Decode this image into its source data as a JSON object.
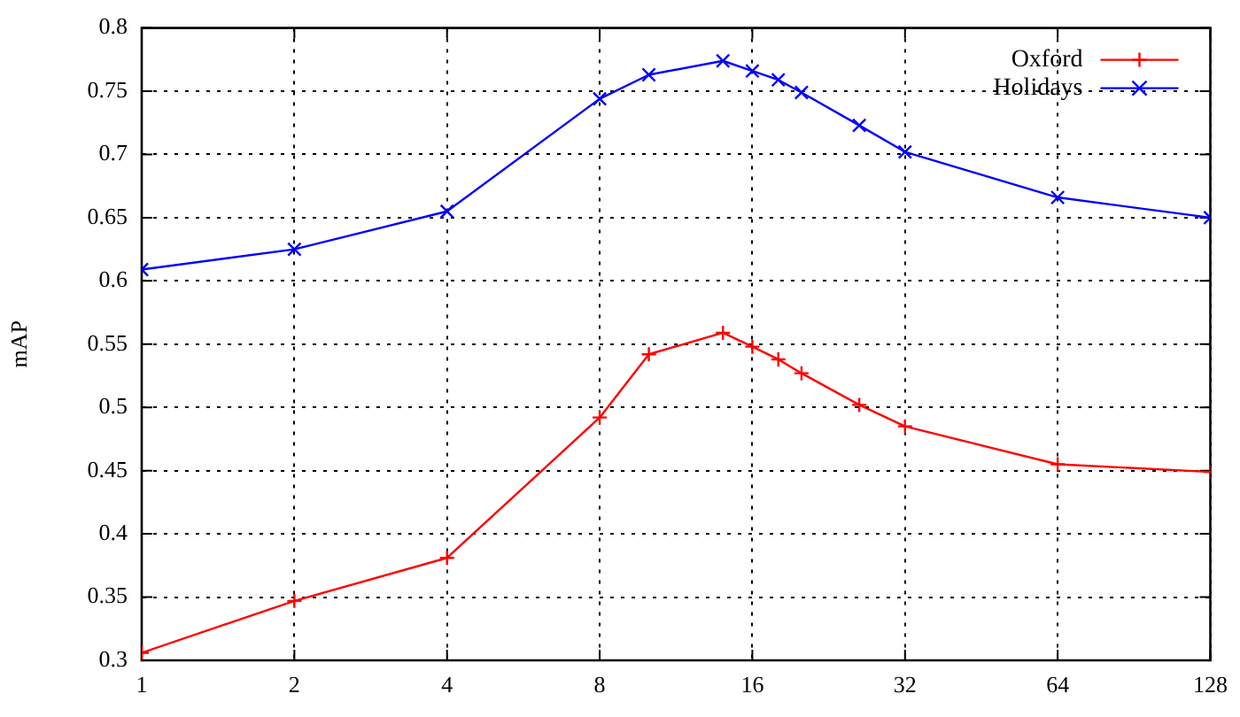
{
  "chart_data": {
    "type": "line",
    "ylabel": "mAP",
    "x": [
      1,
      2,
      4,
      8,
      10,
      14,
      16,
      18,
      20,
      26,
      32,
      64,
      128
    ],
    "series": [
      {
        "name": "Oxford",
        "color": "#ff0000",
        "marker": "plus",
        "values": [
          0.306,
          0.347,
          0.381,
          0.492,
          0.542,
          0.559,
          0.548,
          0.538,
          0.527,
          0.502,
          0.485,
          0.455,
          0.449
        ]
      },
      {
        "name": "Holidays",
        "color": "#0000ff",
        "marker": "cross",
        "values": [
          0.609,
          0.625,
          0.655,
          0.744,
          0.763,
          0.774,
          0.766,
          0.759,
          0.749,
          0.723,
          0.702,
          0.666,
          0.65
        ]
      }
    ],
    "xlim": [
      1,
      128
    ],
    "xticks": [
      1,
      2,
      4,
      8,
      16,
      32,
      64,
      128
    ],
    "ylim": [
      0.3,
      0.8
    ],
    "yticks": [
      0.3,
      0.35,
      0.4,
      0.45,
      0.5,
      0.55,
      0.6,
      0.65,
      0.7,
      0.75,
      0.8
    ],
    "log": "x",
    "grid": true,
    "legend": "top right",
    "line_style": "solid"
  }
}
